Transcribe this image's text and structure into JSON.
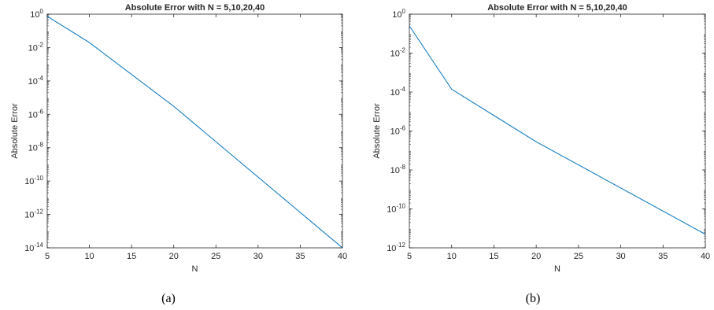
{
  "chart_data": [
    {
      "type": "line",
      "panel_id": "a",
      "caption": "(a)",
      "title": "Absolute Error with N = 5,10,20,40",
      "xlabel": "N",
      "ylabel": "Absolute Error",
      "xlim": [
        5,
        40
      ],
      "ylim": [
        1e-14,
        1
      ],
      "yscale": "log",
      "xticks": [
        5,
        10,
        15,
        20,
        25,
        30,
        35,
        40
      ],
      "yticks": [
        0,
        -2,
        -4,
        -6,
        -8,
        -10,
        -12,
        -14
      ],
      "grid": false,
      "line_color": "#0072bd",
      "x": [
        5,
        10,
        20,
        40
      ],
      "values": [
        0.75,
        0.02,
        3e-06,
        1e-14
      ]
    },
    {
      "type": "line",
      "panel_id": "b",
      "caption": "(b)",
      "title": "Absolute Error with N = 5,10,20,40",
      "xlabel": "N",
      "ylabel": "Absolute Error",
      "xlim": [
        5,
        40
      ],
      "ylim": [
        1e-12,
        1
      ],
      "yscale": "log",
      "xticks": [
        5,
        10,
        15,
        20,
        25,
        30,
        35,
        40
      ],
      "yticks": [
        0,
        -2,
        -4,
        -6,
        -8,
        -10,
        -12
      ],
      "grid": false,
      "line_color": "#0072bd",
      "x": [
        5,
        10,
        20,
        40
      ],
      "values": [
        0.25,
        0.00014,
        2.8e-07,
        5e-12
      ]
    }
  ]
}
